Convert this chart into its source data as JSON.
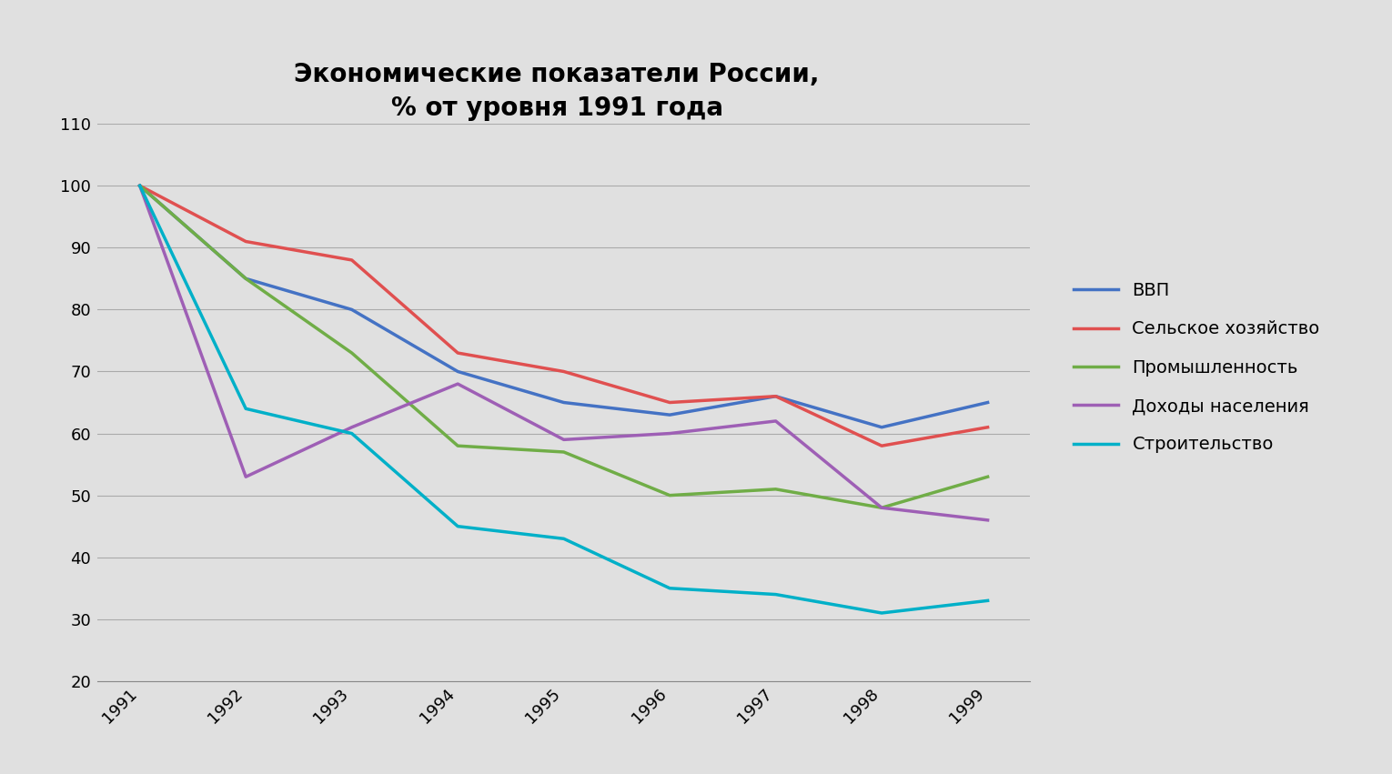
{
  "title": "Экономические показатели России,\n% от уровня 1991 года",
  "years": [
    1991,
    1992,
    1993,
    1994,
    1995,
    1996,
    1997,
    1998,
    1999
  ],
  "series": [
    {
      "label": "ВВП",
      "color": "#4472C4",
      "values": [
        100,
        85,
        80,
        70,
        65,
        63,
        66,
        61,
        65
      ]
    },
    {
      "label": "Сельское хозяйство",
      "color": "#E05050",
      "values": [
        100,
        91,
        88,
        73,
        70,
        65,
        66,
        58,
        61
      ]
    },
    {
      "label": "Промышленность",
      "color": "#70AD47",
      "values": [
        100,
        85,
        73,
        58,
        57,
        50,
        51,
        48,
        53
      ]
    },
    {
      "label": "Доходы населения",
      "color": "#9E5FB5",
      "values": [
        100,
        53,
        61,
        68,
        59,
        60,
        62,
        48,
        46
      ]
    },
    {
      "label": "Строительство",
      "color": "#00B0C8",
      "values": [
        100,
        64,
        60,
        45,
        43,
        35,
        34,
        31,
        33
      ]
    }
  ],
  "ylim": [
    20,
    110
  ],
  "yticks": [
    20,
    30,
    40,
    50,
    60,
    70,
    80,
    90,
    100,
    110
  ],
  "background_color": "#E0E0E0",
  "plot_background_color": "#E0E0E0",
  "grid_color": "#AAAAAA",
  "title_fontsize": 20,
  "legend_fontsize": 14,
  "tick_fontsize": 13,
  "linewidth": 2.5
}
